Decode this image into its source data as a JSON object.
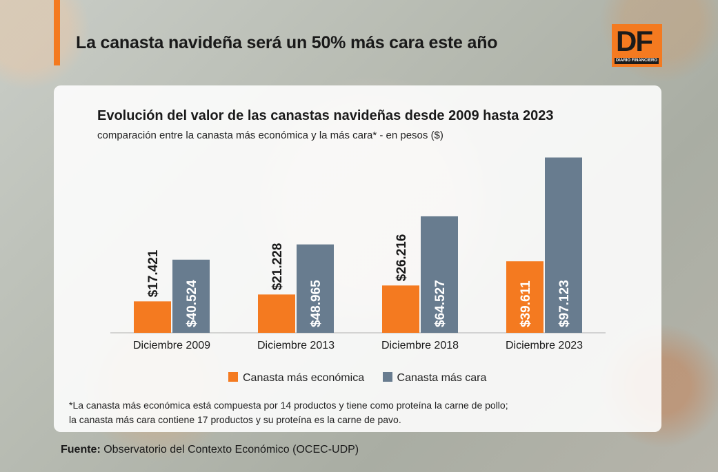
{
  "header": {
    "headline": "La canasta navideña será un 50% más cara este año",
    "logo_text": "DF",
    "logo_sub": "DIARIO FINANCIERO"
  },
  "colors": {
    "accent": "#f47a20",
    "series1": "#f47a20",
    "series2": "#687c8f"
  },
  "chart_data": {
    "type": "bar",
    "title": "Evolución del valor de las canastas navideñas desde 2009 hasta 2023",
    "subtitle": "comparación entre la canasta más económica y la más cara* - en pesos ($)",
    "categories": [
      "Diciembre 2009",
      "Diciembre 2013",
      "Diciembre 2018",
      "Diciembre 2023"
    ],
    "series": [
      {
        "name": "Canasta más económica",
        "values": [
          17421,
          21228,
          26216,
          39611
        ],
        "labels": [
          "$17.421",
          "$21.228",
          "$26.216",
          "$39.611"
        ]
      },
      {
        "name": "Canasta más cara",
        "values": [
          40524,
          48965,
          64527,
          97123
        ],
        "labels": [
          "$40.524",
          "$48.965",
          "$64.527",
          "$97.123"
        ]
      }
    ],
    "ylim": [
      0,
      100000
    ],
    "grid": false,
    "legend": "bottom"
  },
  "note": {
    "line1": "*La canasta más económica está compuesta por 14 productos y tiene como proteína la carne de pollo;",
    "line2": "la canasta más cara contiene 17 productos y su proteína es la carne de pavo."
  },
  "source": {
    "label": "Fuente:",
    "text": " Observatorio del Contexto Económico (OCEC-UDP)"
  }
}
